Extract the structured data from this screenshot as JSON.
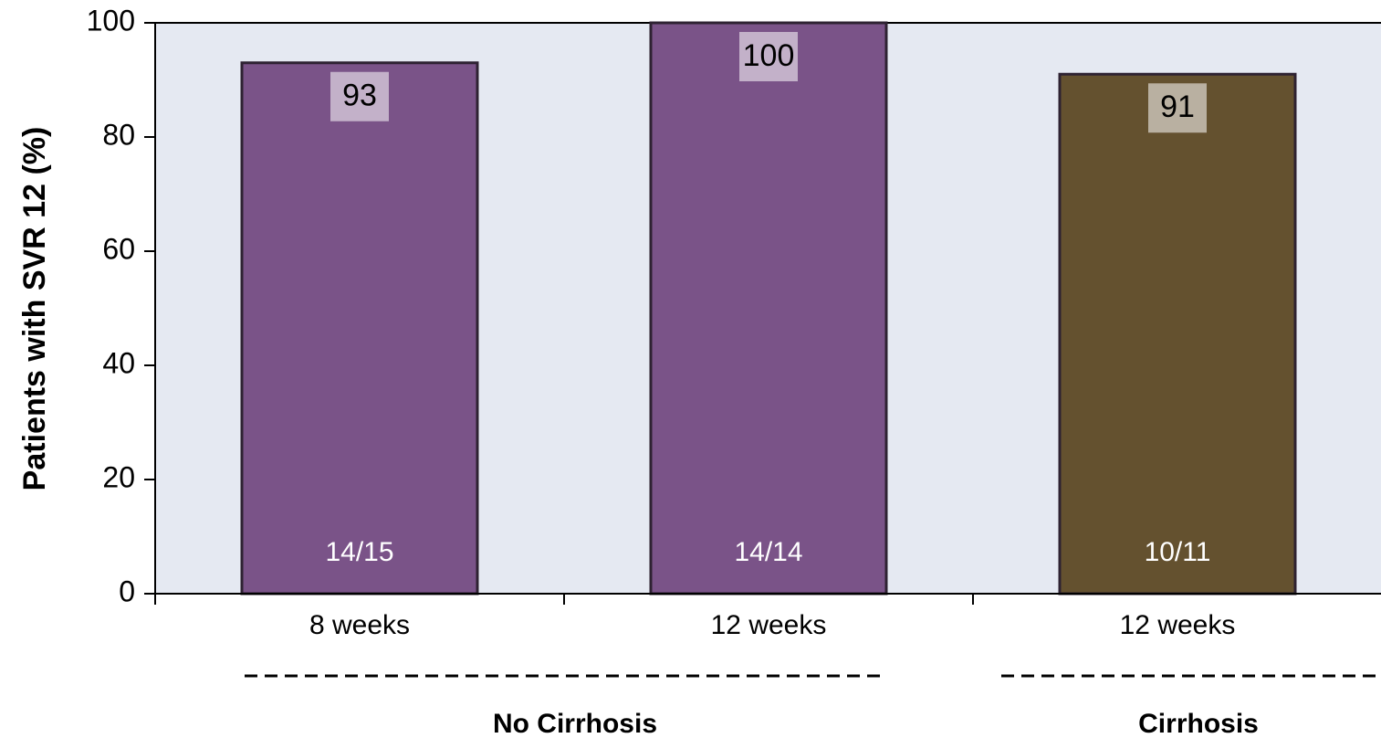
{
  "chart_data": {
    "type": "bar",
    "ylabel": "Patients with SVR 12 (%)",
    "categories": [
      "8 weeks",
      "12 weeks",
      "12 weeks"
    ],
    "values": [
      93,
      100,
      91
    ],
    "colors": [
      "#7a5388",
      "#7a5388",
      "#64512f"
    ],
    "bar_annotations": [
      "14/15",
      "14/14",
      "10/11"
    ],
    "groups": [
      "No Cirrhosis",
      "Cirrhosis"
    ],
    "ylim": [
      0,
      100
    ],
    "yticks": [
      0,
      20,
      40,
      60,
      80,
      100
    ]
  }
}
